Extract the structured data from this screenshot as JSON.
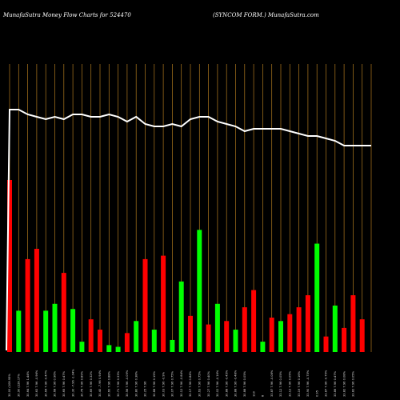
{
  "header": {
    "left_title": "MunafaSutra  Money Flow  Charts for 524470",
    "right_title": "(SYNCOM FORM.) MunafaSutra.com"
  },
  "chart_data": {
    "type": "bar",
    "title": "MunafaSutra  Money Flow  Charts for 524470",
    "subtitle": "(SYNCOM FORM.) MunafaSutra.com",
    "background": "#000000",
    "grid": true,
    "grid_color": "#b07a1e",
    "up_color": "#00ff00",
    "down_color": "#ff0000",
    "line_color": "#ffffff",
    "ylim": [
      0,
      100
    ],
    "categories": [
      "30.00 (108.95%",
      "30.90 (228.17%",
      "30.64 7.96 1.44%",
      "30.63 7.96 -0.96%",
      "30.64 7.96 -0.47%",
      "30.68 7.96 0.96%",
      "30.65 7.96 0.47%",
      "30.30 -7.96 -1.04%",
      "30.76 7.96 0.89%",
      "30.69 7.96 0.32%",
      "30.40 -7.96 0.94%",
      "30.60 7.96 0.88%",
      "30.71 7.96 0.33%",
      "30.56 7.96 -0.09%",
      "30.80 7.96 0.38%",
      "30.25 7.96",
      "30.88 7.96 0.15%",
      "30.03 7.96 -0.9%",
      "30.07 7.96 0.75%",
      "30.12 7.96 -0.84%",
      "30.17 7.96 0.84%",
      "30.63 7.96 0.75%",
      "30.27 7.96 0.40%",
      "30.02 7.96 -0.16%",
      "30.88 7.96 -0.45%",
      "30.88 7.96 -0.48%",
      "30.88 7.96 0.05%",
      "110",
      "8",
      "33.87 7.96 -0.08%",
      "33.12 7.96 0.05%",
      "33.12 7.96 0.05%",
      "33.19 7.96 0.16%",
      "33.90 7.96 -0.75%",
      "0.95",
      "33.87 7.96 -0.75%",
      "33.86 7.96 0.47%",
      "33.82 7.96 0.08%",
      "33.82 7.96 0.05%",
      "",
      ""
    ],
    "series": [
      {
        "direction": [
          "down",
          "up",
          "down",
          "down",
          "up",
          "up",
          "down",
          "up",
          "up",
          "down",
          "down",
          "up",
          "up",
          "down",
          "up",
          "down",
          "up",
          "down",
          "up",
          "up",
          "down",
          "up",
          "down",
          "up",
          "down",
          "up",
          "down",
          "down",
          "up",
          "down",
          "up",
          "down",
          "down",
          "down",
          "up",
          "down",
          "up",
          "down",
          "down",
          "down",
          "up"
        ],
        "values": [
          100,
          24,
          54,
          60,
          24,
          28,
          46,
          25,
          6,
          19,
          13,
          4,
          3,
          11,
          18,
          54,
          13,
          56,
          7,
          41,
          21,
          71,
          16,
          28,
          18,
          13,
          26,
          36,
          6,
          20,
          18,
          22,
          26,
          33,
          63,
          9,
          27,
          14,
          33,
          19,
          0
        ]
      },
      {
        "name": "",
        "values": [
          81,
          81,
          79,
          78,
          77,
          78,
          77,
          79,
          79,
          78,
          78,
          79,
          78,
          76,
          78,
          75,
          74,
          74,
          75,
          74,
          77,
          78,
          78,
          76,
          75,
          74,
          72,
          73,
          73,
          73,
          73,
          72,
          71,
          70,
          70,
          69,
          68,
          66,
          66,
          66,
          66
        ]
      }
    ]
  }
}
